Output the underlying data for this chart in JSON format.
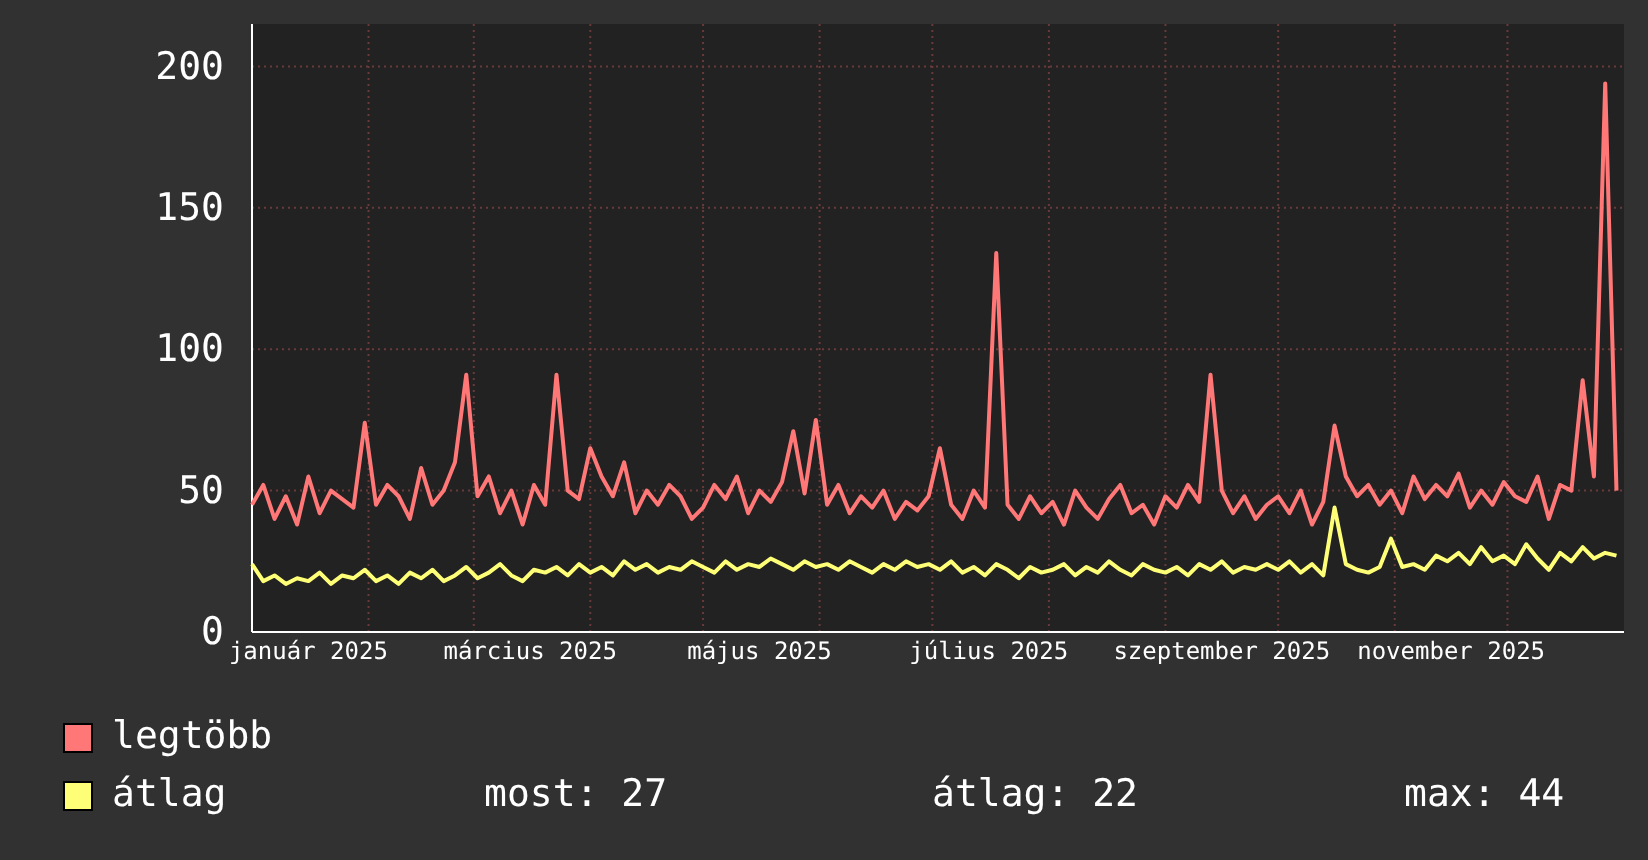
{
  "chart_data": {
    "type": "line",
    "x": [
      "2025-01-01",
      "2025-01-04",
      "2025-01-07",
      "2025-01-10",
      "2025-01-13",
      "2025-01-16",
      "2025-01-19",
      "2025-01-22",
      "2025-01-25",
      "2025-01-28",
      "2025-01-31",
      "2025-02-03",
      "2025-02-06",
      "2025-02-09",
      "2025-02-12",
      "2025-02-15",
      "2025-02-18",
      "2025-02-21",
      "2025-02-24",
      "2025-02-27",
      "2025-03-02",
      "2025-03-05",
      "2025-03-08",
      "2025-03-11",
      "2025-03-14",
      "2025-03-17",
      "2025-03-20",
      "2025-03-23",
      "2025-03-26",
      "2025-03-29",
      "2025-04-01",
      "2025-04-04",
      "2025-04-07",
      "2025-04-10",
      "2025-04-13",
      "2025-04-16",
      "2025-04-19",
      "2025-04-22",
      "2025-04-25",
      "2025-04-28",
      "2025-05-01",
      "2025-05-04",
      "2025-05-07",
      "2025-05-10",
      "2025-05-13",
      "2025-05-16",
      "2025-05-19",
      "2025-05-22",
      "2025-05-25",
      "2025-05-28",
      "2025-05-31",
      "2025-06-03",
      "2025-06-06",
      "2025-06-09",
      "2025-06-12",
      "2025-06-15",
      "2025-06-18",
      "2025-06-21",
      "2025-06-24",
      "2025-06-27",
      "2025-06-30",
      "2025-07-03",
      "2025-07-06",
      "2025-07-09",
      "2025-07-12",
      "2025-07-15",
      "2025-07-18",
      "2025-07-21",
      "2025-07-24",
      "2025-07-27",
      "2025-07-30",
      "2025-08-02",
      "2025-08-05",
      "2025-08-08",
      "2025-08-11",
      "2025-08-14",
      "2025-08-17",
      "2025-08-20",
      "2025-08-23",
      "2025-08-26",
      "2025-08-29",
      "2025-09-01",
      "2025-09-04",
      "2025-09-07",
      "2025-09-10",
      "2025-09-13",
      "2025-09-16",
      "2025-09-19",
      "2025-09-22",
      "2025-09-25",
      "2025-09-28",
      "2025-10-01",
      "2025-10-04",
      "2025-10-07",
      "2025-10-10",
      "2025-10-13",
      "2025-10-16",
      "2025-10-19",
      "2025-10-22",
      "2025-10-25",
      "2025-10-28",
      "2025-10-31",
      "2025-11-03",
      "2025-11-06",
      "2025-11-09",
      "2025-11-12",
      "2025-11-15",
      "2025-11-18",
      "2025-11-21",
      "2025-11-24",
      "2025-11-27",
      "2025-11-30",
      "2025-12-03",
      "2025-12-06",
      "2025-12-09",
      "2025-12-12",
      "2025-12-15",
      "2025-12-18",
      "2025-12-21",
      "2025-12-24",
      "2025-12-27",
      "2025-12-30"
    ],
    "series": [
      {
        "name": "legtöbb",
        "color": "#ff7777",
        "values": [
          45,
          52,
          40,
          48,
          38,
          55,
          42,
          50,
          47,
          44,
          74,
          45,
          52,
          48,
          40,
          58,
          45,
          50,
          60,
          91,
          48,
          55,
          42,
          50,
          38,
          52,
          45,
          91,
          50,
          47,
          65,
          55,
          48,
          60,
          42,
          50,
          45,
          52,
          48,
          40,
          44,
          52,
          47,
          55,
          42,
          50,
          46,
          53,
          71,
          49,
          75,
          45,
          52,
          42,
          48,
          44,
          50,
          40,
          46,
          43,
          48,
          65,
          45,
          40,
          50,
          44,
          134,
          45,
          40,
          48,
          42,
          46,
          38,
          50,
          44,
          40,
          47,
          52,
          42,
          45,
          38,
          48,
          44,
          52,
          46,
          91,
          50,
          42,
          48,
          40,
          45,
          48,
          42,
          50,
          38,
          46,
          73,
          55,
          48,
          52,
          45,
          50,
          42,
          55,
          47,
          52,
          48,
          56,
          44,
          50,
          45,
          53,
          48,
          46,
          55,
          40,
          52,
          50,
          89,
          55,
          194,
          50
        ]
      },
      {
        "name": "átlag",
        "color": "#ffff77",
        "values": [
          24,
          18,
          20,
          17,
          19,
          18,
          21,
          17,
          20,
          19,
          22,
          18,
          20,
          17,
          21,
          19,
          22,
          18,
          20,
          23,
          19,
          21,
          24,
          20,
          18,
          22,
          21,
          23,
          20,
          24,
          21,
          23,
          20,
          25,
          22,
          24,
          21,
          23,
          22,
          25,
          23,
          21,
          25,
          22,
          24,
          23,
          26,
          24,
          22,
          25,
          23,
          24,
          22,
          25,
          23,
          21,
          24,
          22,
          25,
          23,
          24,
          22,
          25,
          21,
          23,
          20,
          24,
          22,
          19,
          23,
          21,
          22,
          24,
          20,
          23,
          21,
          25,
          22,
          20,
          24,
          22,
          21,
          23,
          20,
          24,
          22,
          25,
          21,
          23,
          22,
          24,
          22,
          25,
          21,
          24,
          20,
          44,
          24,
          22,
          21,
          23,
          33,
          23,
          24,
          22,
          27,
          25,
          28,
          24,
          30,
          25,
          27,
          24,
          31,
          26,
          22,
          28,
          25,
          30,
          26,
          28,
          27
        ]
      }
    ],
    "xlim": [
      "2025-01-01",
      "2026-01-01"
    ],
    "xticks": [
      {
        "value": "2025-01-01",
        "label": null
      },
      {
        "value": "2025-01-16",
        "label": "január 2025"
      },
      {
        "value": "2025-02-01",
        "label": null
      },
      {
        "value": "2025-03-01",
        "label": null
      },
      {
        "value": "2025-03-16",
        "label": "március 2025"
      },
      {
        "value": "2025-04-01",
        "label": null
      },
      {
        "value": "2025-05-01",
        "label": null
      },
      {
        "value": "2025-05-16",
        "label": "május 2025"
      },
      {
        "value": "2025-06-01",
        "label": null
      },
      {
        "value": "2025-07-01",
        "label": null
      },
      {
        "value": "2025-07-16",
        "label": "július 2025"
      },
      {
        "value": "2025-08-01",
        "label": null
      },
      {
        "value": "2025-09-01",
        "label": null
      },
      {
        "value": "2025-09-16",
        "label": "szeptember 2025"
      },
      {
        "value": "2025-10-01",
        "label": null
      },
      {
        "value": "2025-11-01",
        "label": null
      },
      {
        "value": "2025-11-16",
        "label": "november 2025"
      },
      {
        "value": "2025-12-01",
        "label": null
      }
    ],
    "ylim": [
      0,
      215
    ],
    "yticks": [
      0,
      50,
      100,
      150,
      200
    ],
    "grid": true,
    "legend": "bottom",
    "marker": "none",
    "line_style": "solid",
    "annotations": [
      "most: 27",
      "átlag: 22",
      "max: 44"
    ]
  }
}
